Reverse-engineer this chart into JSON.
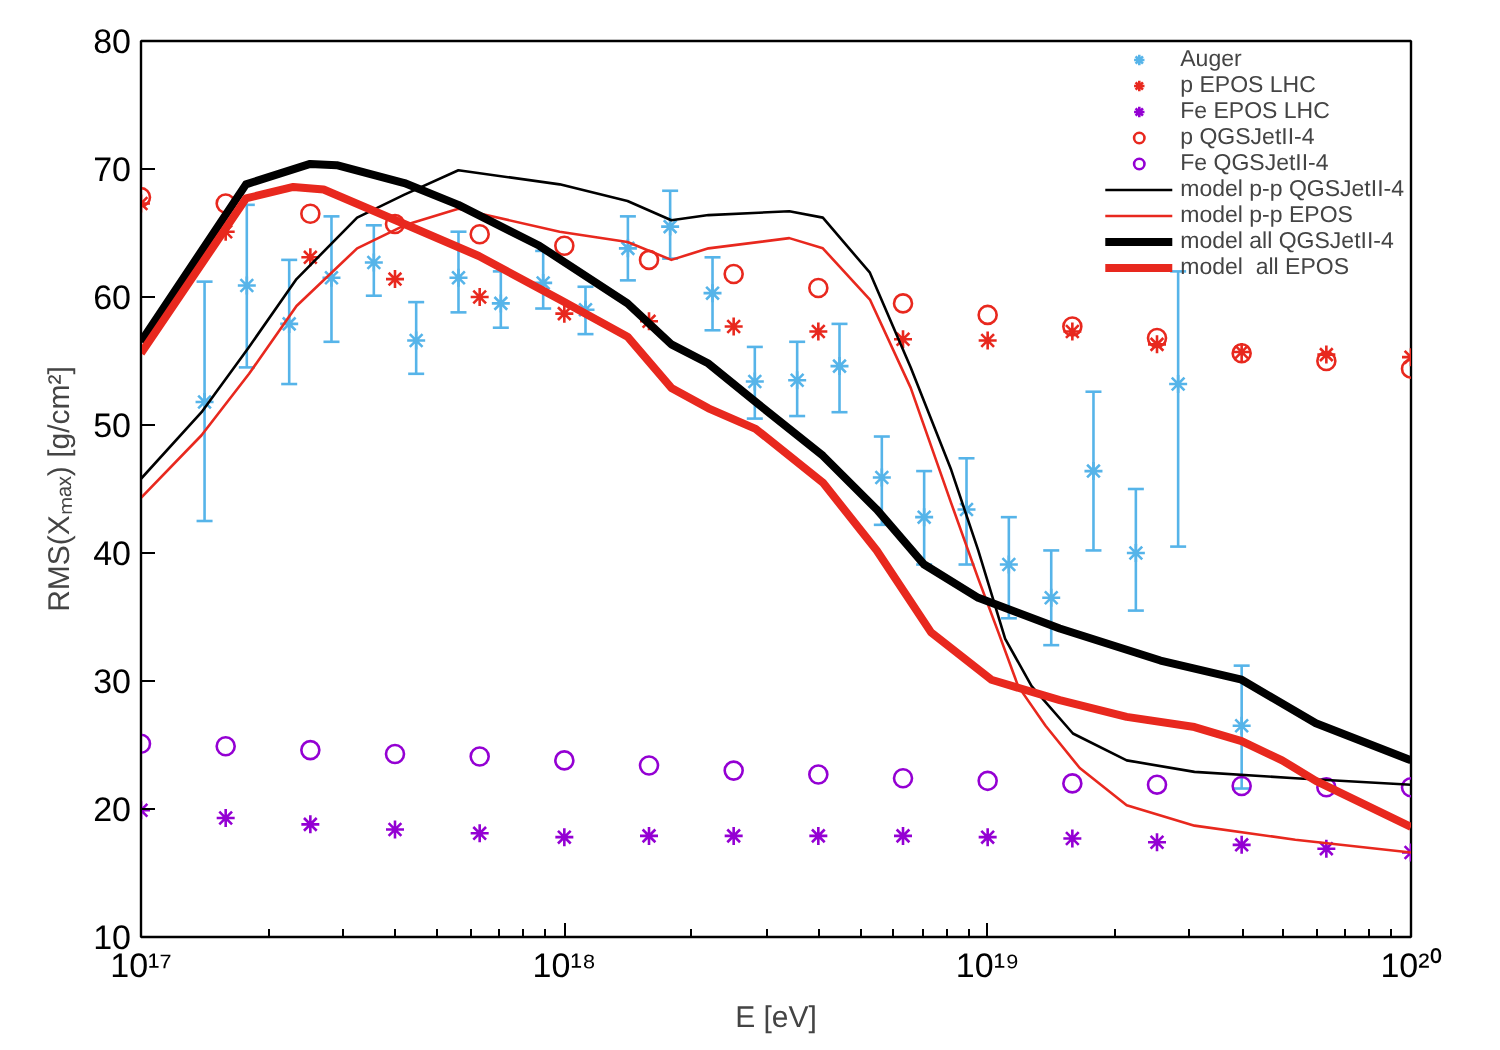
{
  "chart_data": {
    "type": "scatter",
    "xlabel": "E [eV]",
    "ylabel": "RMS(Xₘₐₓ) [g/cm²]",
    "log": "x",
    "xlim": [
      1e+17,
      1e+20
    ],
    "xticks": [
      {
        "value": 1e+17,
        "label": "10¹⁷"
      },
      {
        "value": 1e+18,
        "label": "10¹⁸"
      },
      {
        "value": 1e+19,
        "label": "10¹⁹"
      },
      {
        "value": 1e+20,
        "label": "10²⁰"
      }
    ],
    "ylim": [
      10,
      80
    ],
    "yticks": [
      10,
      20,
      30,
      40,
      50,
      60,
      70,
      80
    ],
    "grid": false,
    "legend": "top right",
    "series": [
      {
        "name": "Auger",
        "marker": "cross",
        "color": "#56b4e9",
        "x": [
          1.413e+17,
          1.778e+17,
          2.239e+17,
          2.818e+17,
          3.548e+17,
          4.467e+17,
          5.623e+17,
          7.079e+17,
          8.913e+17,
          1.122e+18,
          1.413e+18,
          1.778e+18,
          2.239e+18,
          2.818e+18,
          3.548e+18,
          4.467e+18,
          5.623e+18,
          7.079e+18,
          8.913e+18,
          1.122e+19,
          1.413e+19,
          1.778e+19,
          2.239e+19,
          2.818e+19,
          3.981e+19
        ],
        "values": [
          51.8,
          60.9,
          57.9,
          61.5,
          62.7,
          56.6,
          61.5,
          59.5,
          61.1,
          59.0,
          63.8,
          65.5,
          60.3,
          53.4,
          53.5,
          54.6,
          45.9,
          42.8,
          43.4,
          39.1,
          36.5,
          46.4,
          40.0,
          53.2,
          26.5
        ],
        "errors": [
          [
            42.5,
            61.2
          ],
          [
            54.5,
            67.2
          ],
          [
            53.2,
            62.9
          ],
          [
            56.5,
            66.3
          ],
          [
            60.1,
            65.6
          ],
          [
            54.0,
            59.6
          ],
          [
            58.8,
            65.1
          ],
          [
            57.6,
            62.0
          ],
          [
            59.1,
            63.6
          ],
          [
            57.1,
            60.8
          ],
          [
            61.3,
            66.3
          ],
          [
            63.0,
            68.3
          ],
          [
            57.4,
            63.1
          ],
          [
            50.5,
            56.1
          ],
          [
            50.7,
            56.5
          ],
          [
            51.0,
            57.9
          ],
          [
            42.2,
            49.1
          ],
          [
            39.1,
            46.4
          ],
          [
            39.1,
            47.4
          ],
          [
            34.9,
            42.8
          ],
          [
            32.8,
            40.2
          ],
          [
            40.2,
            52.6
          ],
          [
            35.5,
            45.0
          ],
          [
            40.5,
            62.0
          ],
          [
            21.6,
            31.2
          ]
        ]
      },
      {
        "name": "p EPOS LHC",
        "marker": "cross",
        "color": "#e8281e",
        "x": [
          1e+17,
          1.585e+17,
          2.512e+17,
          3.981e+17,
          6.31e+17,
          1e+18,
          1.585e+18,
          2.512e+18,
          3.981e+18,
          6.31e+18,
          1e+19,
          1.585e+19,
          2.512e+19,
          3.981e+19,
          6.31e+19,
          1e+20
        ],
        "values": [
          67.3,
          65.1,
          63.1,
          61.4,
          60.0,
          58.7,
          58.1,
          57.7,
          57.3,
          56.7,
          56.6,
          57.3,
          56.3,
          55.7,
          55.5,
          55.3
        ]
      },
      {
        "name": "Fe EPOS LHC",
        "marker": "cross",
        "color": "#9400d3",
        "x": [
          1e+17,
          1.585e+17,
          2.512e+17,
          3.981e+17,
          6.31e+17,
          1e+18,
          1.585e+18,
          2.512e+18,
          3.981e+18,
          6.31e+18,
          1e+19,
          1.585e+19,
          2.512e+19,
          3.981e+19,
          6.31e+19,
          1e+20
        ],
        "values": [
          19.9,
          19.3,
          18.8,
          18.4,
          18.1,
          17.8,
          17.9,
          17.9,
          17.9,
          17.9,
          17.8,
          17.7,
          17.4,
          17.2,
          16.9,
          16.6
        ]
      },
      {
        "name": "p QGSJetII-4",
        "marker": "circle",
        "color": "#e8281e",
        "x": [
          1e+17,
          1.585e+17,
          2.512e+17,
          3.981e+17,
          6.31e+17,
          1e+18,
          1.585e+18,
          2.512e+18,
          3.981e+18,
          6.31e+18,
          1e+19,
          1.585e+19,
          2.512e+19,
          3.981e+19,
          6.31e+19,
          1e+20
        ],
        "values": [
          67.8,
          67.3,
          66.5,
          65.7,
          64.9,
          64.0,
          62.9,
          61.8,
          60.7,
          59.5,
          58.6,
          57.7,
          56.8,
          55.6,
          55.0,
          54.4
        ]
      },
      {
        "name": "Fe QGSJetII-4",
        "marker": "circle",
        "color": "#9400d3",
        "x": [
          1e+17,
          1.585e+17,
          2.512e+17,
          3.981e+17,
          6.31e+17,
          1e+18,
          1.585e+18,
          2.512e+18,
          3.981e+18,
          6.31e+18,
          1e+19,
          1.585e+19,
          2.512e+19,
          3.981e+19,
          6.31e+19,
          1e+20
        ],
        "values": [
          25.1,
          24.9,
          24.6,
          24.3,
          24.1,
          23.8,
          23.4,
          23.0,
          22.7,
          22.4,
          22.2,
          22.0,
          21.9,
          21.8,
          21.7,
          21.7
        ]
      },
      {
        "name": "model p-p QGSJetII-4",
        "type": "line",
        "line_style": "solid",
        "color": "#000000",
        "x": [
          1e+17,
          1.39e+17,
          1.8e+17,
          2.33e+17,
          3.24e+17,
          4.19e+17,
          5.62e+17,
          9.75e+17,
          1.41e+18,
          1.79e+18,
          2.19e+18,
          3.4e+18,
          4.08e+18,
          5.27e+18,
          6.58e+18,
          8.2e+18,
          9.5e+18,
          1.1e+19,
          1.27e+19,
          1.59e+19,
          2.13e+19,
          3.08e+19,
          5.33e+19,
          1e+20
        ],
        "values": [
          45.8,
          51.0,
          56.1,
          61.4,
          66.2,
          68.0,
          69.9,
          68.8,
          67.5,
          66.0,
          66.4,
          66.7,
          66.2,
          61.9,
          54.5,
          46.5,
          40.2,
          33.3,
          29.6,
          25.9,
          23.8,
          22.9,
          22.4,
          21.9
        ]
      },
      {
        "name": "model p-p EPOS",
        "type": "line",
        "line_style": "solid",
        "color": "#e8281e",
        "x": [
          1e+17,
          1.39e+17,
          1.8e+17,
          2.33e+17,
          3.24e+17,
          4.19e+17,
          5.62e+17,
          9.75e+17,
          1.41e+18,
          1.79e+18,
          2.19e+18,
          3.4e+18,
          4.08e+18,
          5.27e+18,
          6.58e+18,
          8.2e+18,
          9.5e+18,
          1.06e+19,
          1.18e+19,
          1.37e+19,
          1.65e+19,
          2.13e+19,
          3.08e+19,
          5.33e+19,
          1e+20
        ],
        "values": [
          44.3,
          49.2,
          54.0,
          59.3,
          63.8,
          65.6,
          66.9,
          65.1,
          64.3,
          62.9,
          63.8,
          64.6,
          63.8,
          59.8,
          52.9,
          43.9,
          38.0,
          33.8,
          29.6,
          26.5,
          23.2,
          20.3,
          18.7,
          17.6,
          16.6
        ]
      },
      {
        "name": "model all QGSJetII-4",
        "type": "line",
        "line_style": "solid",
        "color": "#000000",
        "x": [
          1e+17,
          1.77e+17,
          2.51e+17,
          2.9e+17,
          4.19e+17,
          5.62e+17,
          8.73e+17,
          1.41e+18,
          1.79e+18,
          2.19e+18,
          2.83e+18,
          4.08e+18,
          5.47e+18,
          7.08e+18,
          9.5e+18,
          1.48e+19,
          2.56e+19,
          3.98e+19,
          5.96e+19,
          1e+20
        ],
        "values": [
          56.5,
          68.8,
          70.4,
          70.3,
          68.9,
          67.2,
          64.0,
          59.5,
          56.3,
          54.8,
          51.8,
          47.6,
          43.4,
          39.1,
          36.5,
          34.1,
          31.6,
          30.1,
          26.7,
          23.8
        ]
      },
      {
        "name": "model  all EPOS",
        "type": "line",
        "line_style": "solid",
        "color": "#e8281e",
        "x": [
          1e+17,
          1.77e+17,
          2.29e+17,
          2.7e+17,
          4.19e+17,
          6.28e+17,
          9.75e+17,
          1.41e+18,
          1.79e+18,
          2.19e+18,
          2.83e+18,
          4.08e+18,
          5.47e+18,
          7.35e+18,
          1.02e+19,
          1.48e+19,
          2.13e+19,
          3.08e+19,
          3.98e+19,
          4.96e+19,
          5.96e+19,
          1e+20
        ],
        "values": [
          55.6,
          67.7,
          68.6,
          68.4,
          65.7,
          63.2,
          59.8,
          56.9,
          52.9,
          51.3,
          49.7,
          45.5,
          40.2,
          33.8,
          30.1,
          28.5,
          27.2,
          26.4,
          25.3,
          23.8,
          22.2,
          18.6
        ]
      }
    ]
  }
}
